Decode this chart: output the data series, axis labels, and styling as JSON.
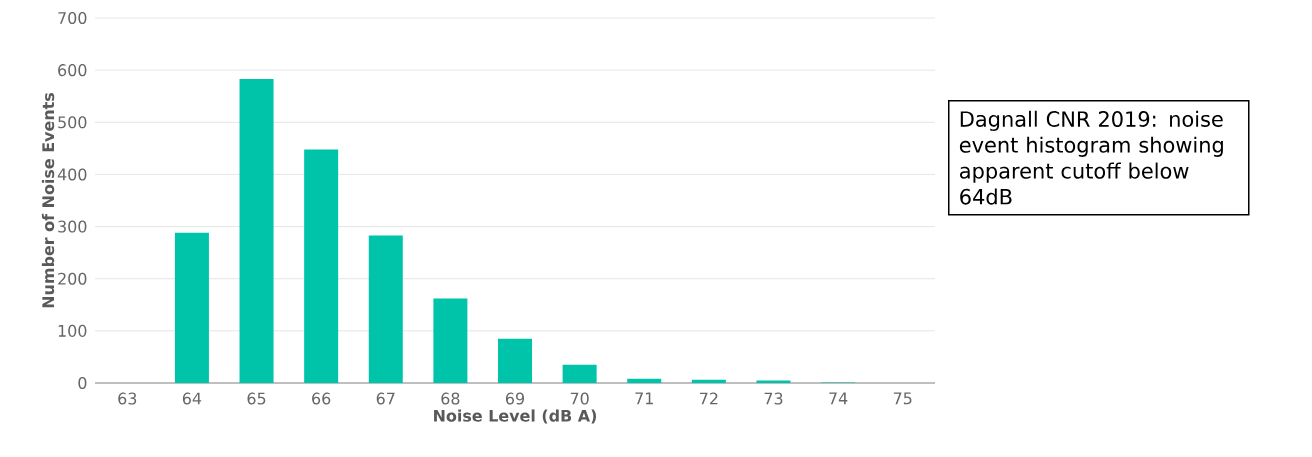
{
  "chart_data": {
    "type": "bar",
    "xlabel": "Noise Level (dB A)",
    "ylabel": "Number of Noise Events",
    "categories": [
      "63",
      "64",
      "65",
      "66",
      "67",
      "68",
      "69",
      "70",
      "71",
      "72",
      "73",
      "74",
      "75"
    ],
    "values": [
      0,
      288,
      583,
      448,
      283,
      162,
      85,
      35,
      8,
      6,
      5,
      1,
      0
    ],
    "color": "#00c4aa",
    "ylim": [
      0,
      700
    ],
    "yticks": [
      0,
      100,
      200,
      300,
      400,
      500,
      600,
      700
    ],
    "grid": "y",
    "annotations": [
      "Dagnall CNR 2019: noise event histogram showing apparent cutoff below 64dB"
    ]
  }
}
